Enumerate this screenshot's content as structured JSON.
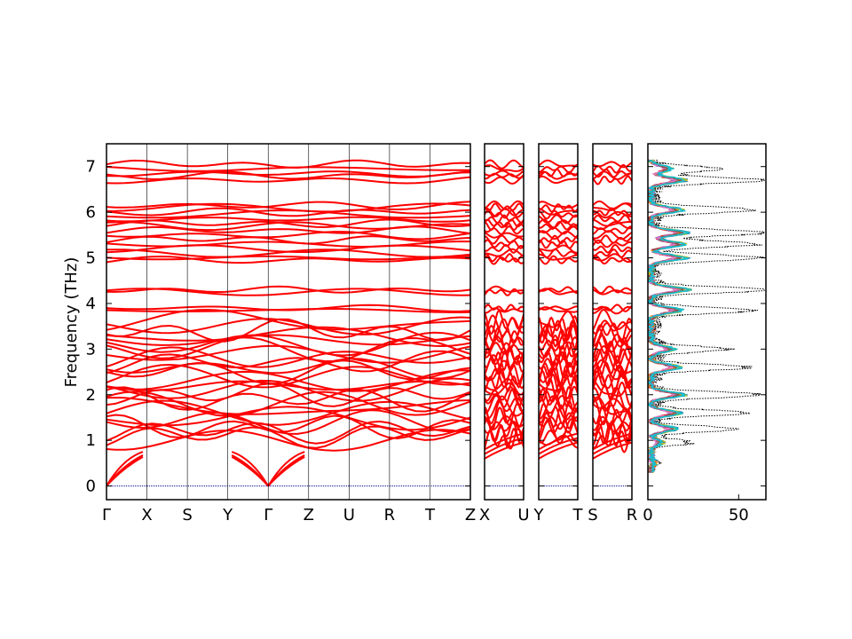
{
  "chart_data": {
    "type": "line",
    "title": "",
    "ylabel": "Frequency (THz)",
    "ylim": [
      -0.3,
      7.5
    ],
    "yticks": [
      0,
      1,
      2,
      3,
      4,
      5,
      6,
      7
    ],
    "band_color": "#ff0000",
    "zero_line_color": "#00008b",
    "dos_total_color": "#000000",
    "segment_groups": [
      {
        "labels": [
          "Γ",
          "X",
          "S",
          "Y",
          "Γ",
          "Z",
          "U",
          "R",
          "T",
          "Z"
        ]
      },
      {
        "labels": [
          "X",
          "U"
        ]
      },
      {
        "labels": [
          "Y",
          "T"
        ]
      },
      {
        "labels": [
          "S",
          "R"
        ]
      }
    ],
    "band_levels": [
      7.05,
      6.95,
      6.85,
      6.8,
      6.7,
      6.15,
      6.1,
      6.0,
      5.95,
      5.85,
      5.75,
      5.7,
      5.6,
      5.5,
      5.4,
      5.3,
      5.2,
      5.1,
      5.0,
      4.95,
      4.3,
      4.25,
      3.9,
      3.85,
      3.6,
      3.5,
      3.4,
      3.3,
      3.2,
      3.1,
      3.0,
      2.9,
      2.8,
      2.7,
      2.6,
      2.5,
      2.4,
      2.3,
      2.2,
      2.1,
      2.0,
      1.9,
      1.8,
      1.7,
      1.6,
      1.5,
      1.4,
      1.3,
      1.2,
      1.1,
      1.0
    ],
    "dos": {
      "xlabel": "",
      "xlim": [
        0,
        65
      ],
      "xticks": [
        0,
        50
      ],
      "pdos_colors": [
        "#ff0000",
        "#2ca02c",
        "#1f77b4",
        "#9467bd",
        "#ff7f0e",
        "#bcbd22",
        "#e377c2",
        "#8c564b",
        "#17becf"
      ],
      "total_peaks": [
        [
          6.95,
          35
        ],
        [
          6.7,
          60
        ],
        [
          6.05,
          55
        ],
        [
          5.55,
          62
        ],
        [
          5.3,
          58
        ],
        [
          5.0,
          60
        ],
        [
          4.3,
          65
        ],
        [
          3.85,
          55
        ],
        [
          3.0,
          40
        ],
        [
          2.6,
          52
        ],
        [
          2.0,
          58
        ],
        [
          1.6,
          50
        ],
        [
          1.25,
          45
        ],
        [
          0.95,
          20
        ],
        [
          0.5,
          6
        ]
      ]
    }
  }
}
